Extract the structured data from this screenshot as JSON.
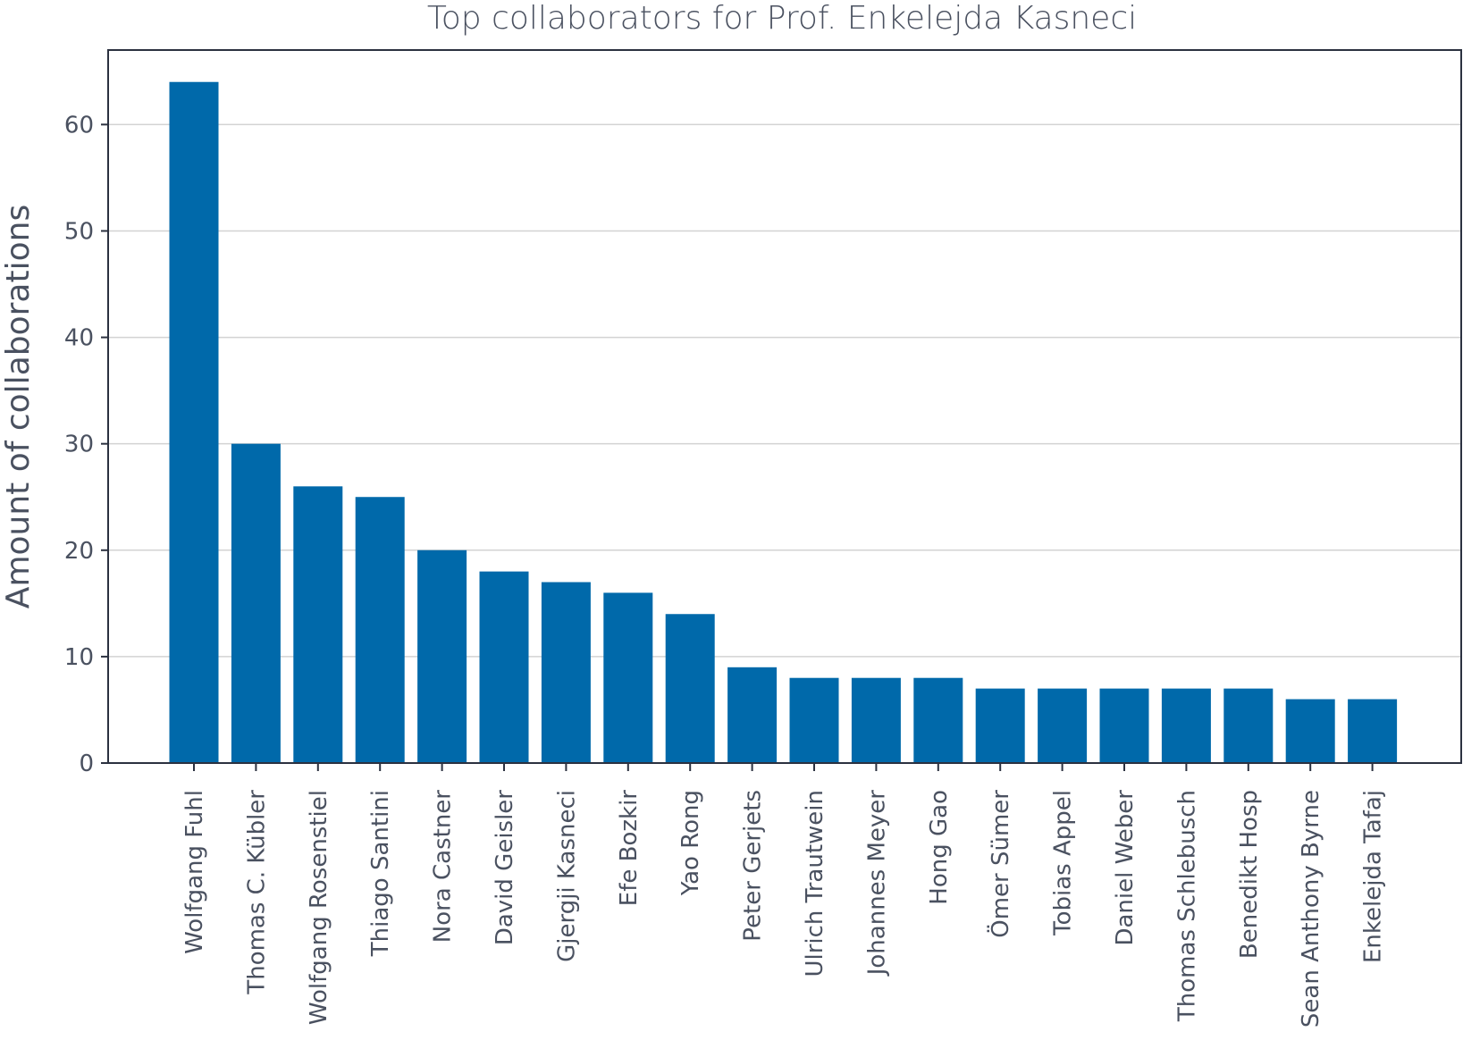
{
  "chart_data": {
    "type": "bar",
    "title": "Top collaborators for Prof. Enkelejda Kasneci",
    "xlabel": "",
    "ylabel": "Amount of collaborations",
    "ylim": [
      0,
      67
    ],
    "yticks": [
      0,
      10,
      20,
      30,
      40,
      50,
      60
    ],
    "grid": "horizontal",
    "bar_color": "#0069aa",
    "categories": [
      "Wolfgang Fuhl",
      "Thomas C. Kübler",
      "Wolfgang Rosenstiel",
      "Thiago Santini",
      "Nora Castner",
      "David Geisler",
      "Gjergji Kasneci",
      "Efe Bozkir",
      "Yao Rong",
      "Peter Gerjets",
      "Ulrich Trautwein",
      "Johannes Meyer",
      "Hong Gao",
      "Ömer Sümer",
      "Tobias Appel",
      "Daniel Weber",
      "Thomas Schlebusch",
      "Benedikt Hosp",
      "Sean Anthony Byrne",
      "Enkelejda Tafaj"
    ],
    "values": [
      64,
      30,
      26,
      25,
      20,
      18,
      17,
      16,
      14,
      9,
      8,
      8,
      8,
      7,
      7,
      7,
      7,
      7,
      6,
      6
    ]
  }
}
